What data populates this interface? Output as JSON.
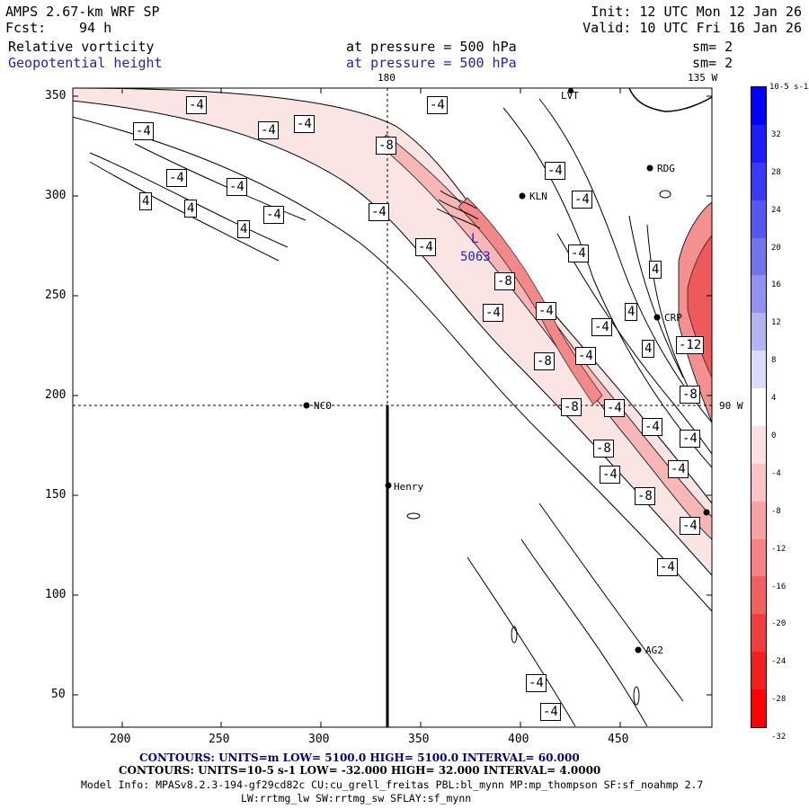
{
  "header": {
    "title": "AMPS 2.67-km WRF SP",
    "fcst_label": "Fcst:",
    "fcst_value": "94 h",
    "init": "Init: 12 UTC Mon 12 Jan 26",
    "valid": "Valid: 10 UTC Fri 16 Jan 26"
  },
  "fields": [
    {
      "name": "Relative vorticity",
      "pressure": "at pressure =  500 hPa",
      "sm": "sm= 2",
      "color": "#000000"
    },
    {
      "name": "Geopotential height",
      "pressure": "at pressure =  500 hPa",
      "sm": "sm= 2",
      "color": "#1f1fbf"
    }
  ],
  "map": {
    "lon_labels": [
      "180",
      "135 W",
      "90 W"
    ],
    "x_ticks": [
      "200",
      "250",
      "300",
      "350",
      "400",
      "450"
    ],
    "y_ticks": [
      "350",
      "300",
      "250",
      "200",
      "150",
      "100",
      "50"
    ],
    "stations": [
      "RDG",
      "KLN",
      "NCO",
      "Henry",
      "AG2",
      "CRP",
      "LVT"
    ],
    "height_label": {
      "marker": "L",
      "value": "5063"
    },
    "contour_labels": [
      "-4",
      "4",
      "-8",
      "-12"
    ]
  },
  "colorbar": {
    "unit": "10-5 s-1",
    "labels": [
      "32",
      "28",
      "24",
      "20",
      "16",
      "12",
      "8",
      "4",
      "0",
      "-4",
      "-8",
      "-12",
      "-16",
      "-20",
      "-24",
      "-28",
      "-32"
    ],
    "colors": [
      "#0000ff",
      "#1d1dfb",
      "#3a3af6",
      "#5656f1",
      "#7373ec",
      "#9191ef",
      "#b4b4f3",
      "#dcdcfa",
      "#ffffff",
      "#fde0e0",
      "#fbc3c3",
      "#f8a3a3",
      "#f58383",
      "#f26060",
      "#f03e3e",
      "#f21f1f",
      "#ff0000"
    ]
  },
  "footer": {
    "line1": "CONTOURS:  UNITS=m  LOW=  5100.0        HIGH=  5100.0        INTERVAL=   60.000",
    "line2": "CONTOURS:  UNITS=10-5 s-1   LOW=  -32.000        HIGH=  32.000        INTERVAL=   4.0000",
    "line3": "Model Info: MPASv8.2.3-194-gf29cd82c CU:cu_grell_freitas PBL:bl_mynn MP:mp_thompson SF:sf_noahmp 2.7",
    "line4": "LW:rrtmg_lw SW:rrtmg_sw SFLAY:sf_mynn"
  }
}
